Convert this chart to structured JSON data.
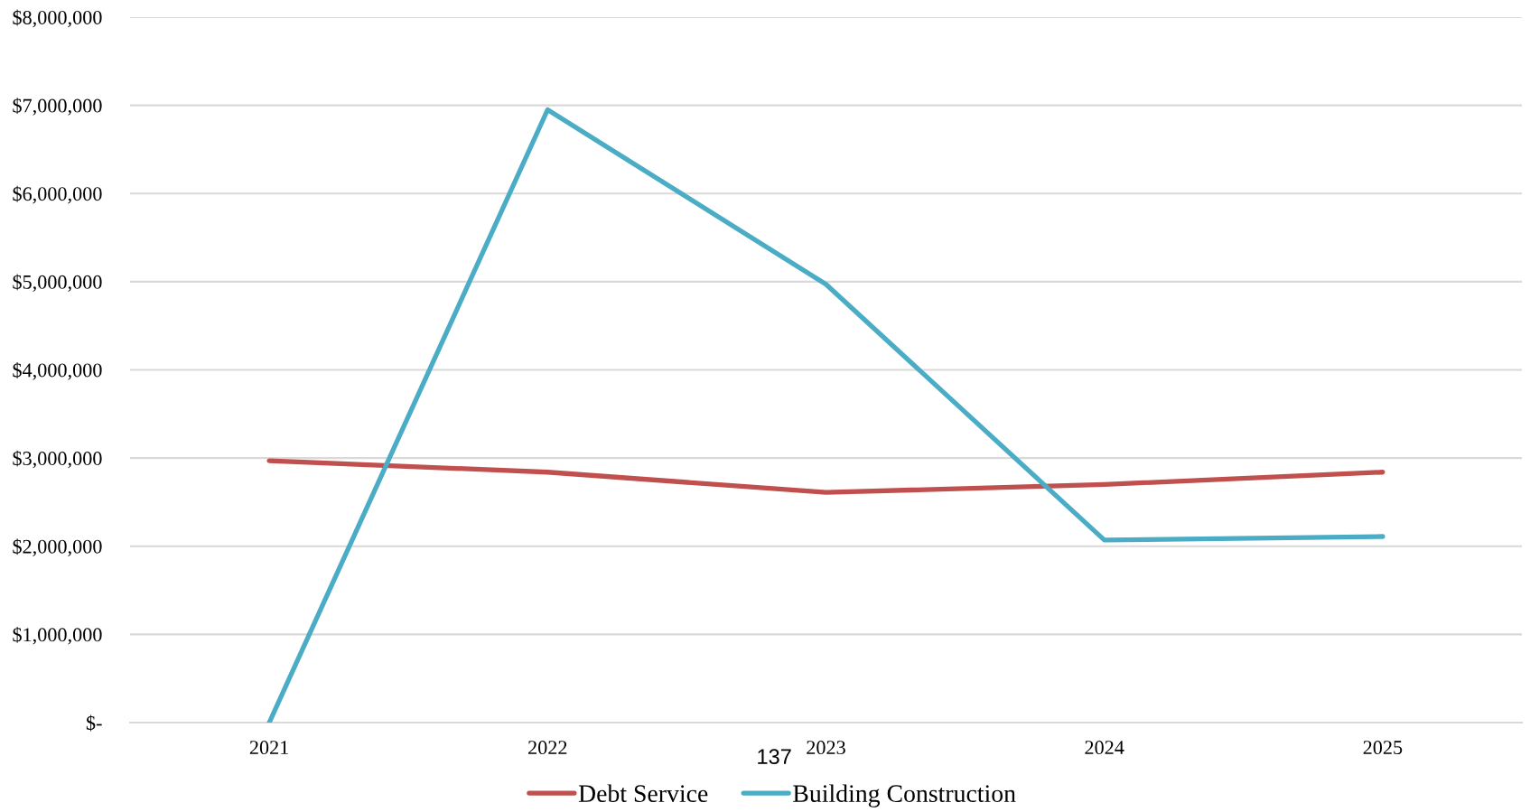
{
  "chart_data": {
    "type": "line",
    "categories": [
      "2021",
      "2022",
      "2023",
      "2024",
      "2025"
    ],
    "series": [
      {
        "name": "Debt Service",
        "color": "#c0504d",
        "values": [
          2970000,
          2840000,
          2610000,
          2700000,
          2840000
        ]
      },
      {
        "name": "Building Construction",
        "color": "#4bacc6",
        "values": [
          0,
          6950000,
          4970000,
          2070000,
          2110000
        ]
      }
    ],
    "ylim": [
      0,
      8000000
    ],
    "yticks": [
      {
        "value": 0,
        "label": "$-"
      },
      {
        "value": 1000000,
        "label": "$1,000,000"
      },
      {
        "value": 2000000,
        "label": "$2,000,000"
      },
      {
        "value": 3000000,
        "label": "$3,000,000"
      },
      {
        "value": 4000000,
        "label": "$4,000,000"
      },
      {
        "value": 5000000,
        "label": "$5,000,000"
      },
      {
        "value": 6000000,
        "label": "$6,000,000"
      },
      {
        "value": 7000000,
        "label": "$7,000,000"
      },
      {
        "value": 8000000,
        "label": "$8,000,000"
      }
    ],
    "grid": "y",
    "legend": "bottom",
    "annotations": [
      "137"
    ]
  }
}
